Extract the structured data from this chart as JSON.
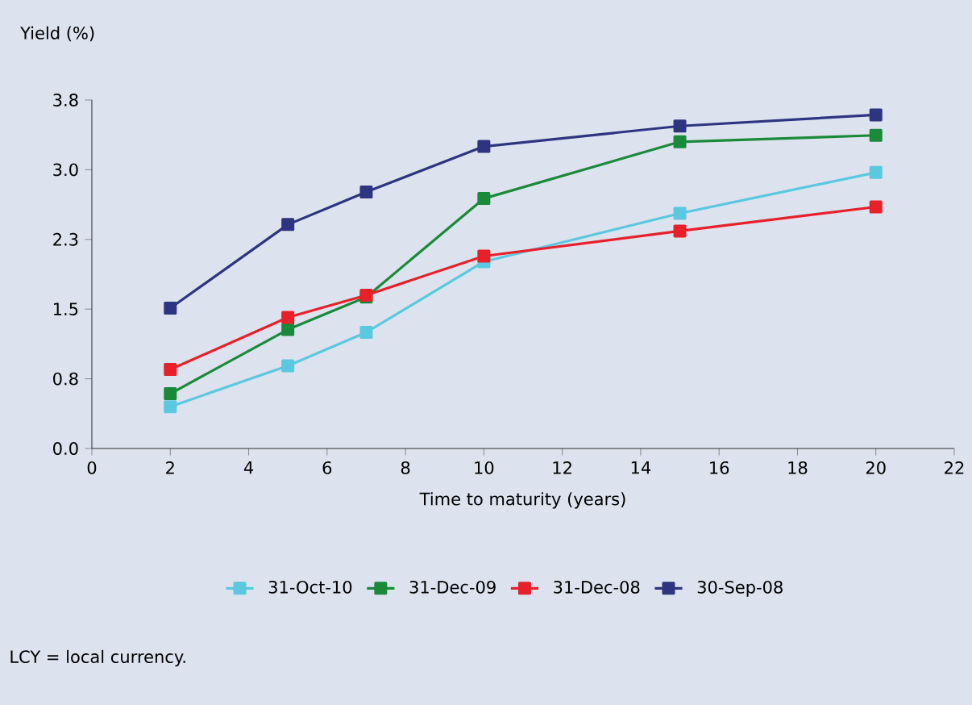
{
  "chart_data": {
    "type": "line",
    "ylabel": "Yield (%)",
    "xlabel": "Time to maturity (years)",
    "x": [
      2,
      5,
      7,
      10,
      15,
      20
    ],
    "series": [
      {
        "name": "31-Oct-10",
        "color": "#5bc8e0",
        "values": [
          0.45,
          0.89,
          1.25,
          2.01,
          2.53,
          2.97
        ]
      },
      {
        "name": "31-Dec-09",
        "color": "#1a8a3a",
        "values": [
          0.59,
          1.28,
          1.63,
          2.69,
          3.3,
          3.37
        ]
      },
      {
        "name": "31-Dec-08",
        "color": "#e8202a",
        "values": [
          0.85,
          1.41,
          1.65,
          2.07,
          2.34,
          2.6
        ]
      },
      {
        "name": "30-Sep-08",
        "color": "#2e3480",
        "values": [
          1.51,
          2.41,
          2.76,
          3.25,
          3.47,
          3.59
        ]
      }
    ],
    "xlim": [
      0,
      22
    ],
    "xticks": [
      0,
      2,
      4,
      6,
      8,
      10,
      12,
      14,
      16,
      18,
      20,
      22
    ],
    "ylim": [
      0,
      3.75
    ],
    "yticks": [
      {
        "value": 0,
        "label": "0.0"
      },
      {
        "value": 0.75,
        "label": "0.8"
      },
      {
        "value": 1.5,
        "label": "1.5"
      },
      {
        "value": 2.25,
        "label": "2.3"
      },
      {
        "value": 3,
        "label": "3.0"
      },
      {
        "value": 3.75,
        "label": "3.8"
      }
    ],
    "grid": false,
    "legend": "bottom",
    "marker": "square",
    "line_style": "solid",
    "annotations": [
      "LCY = local currency."
    ]
  }
}
